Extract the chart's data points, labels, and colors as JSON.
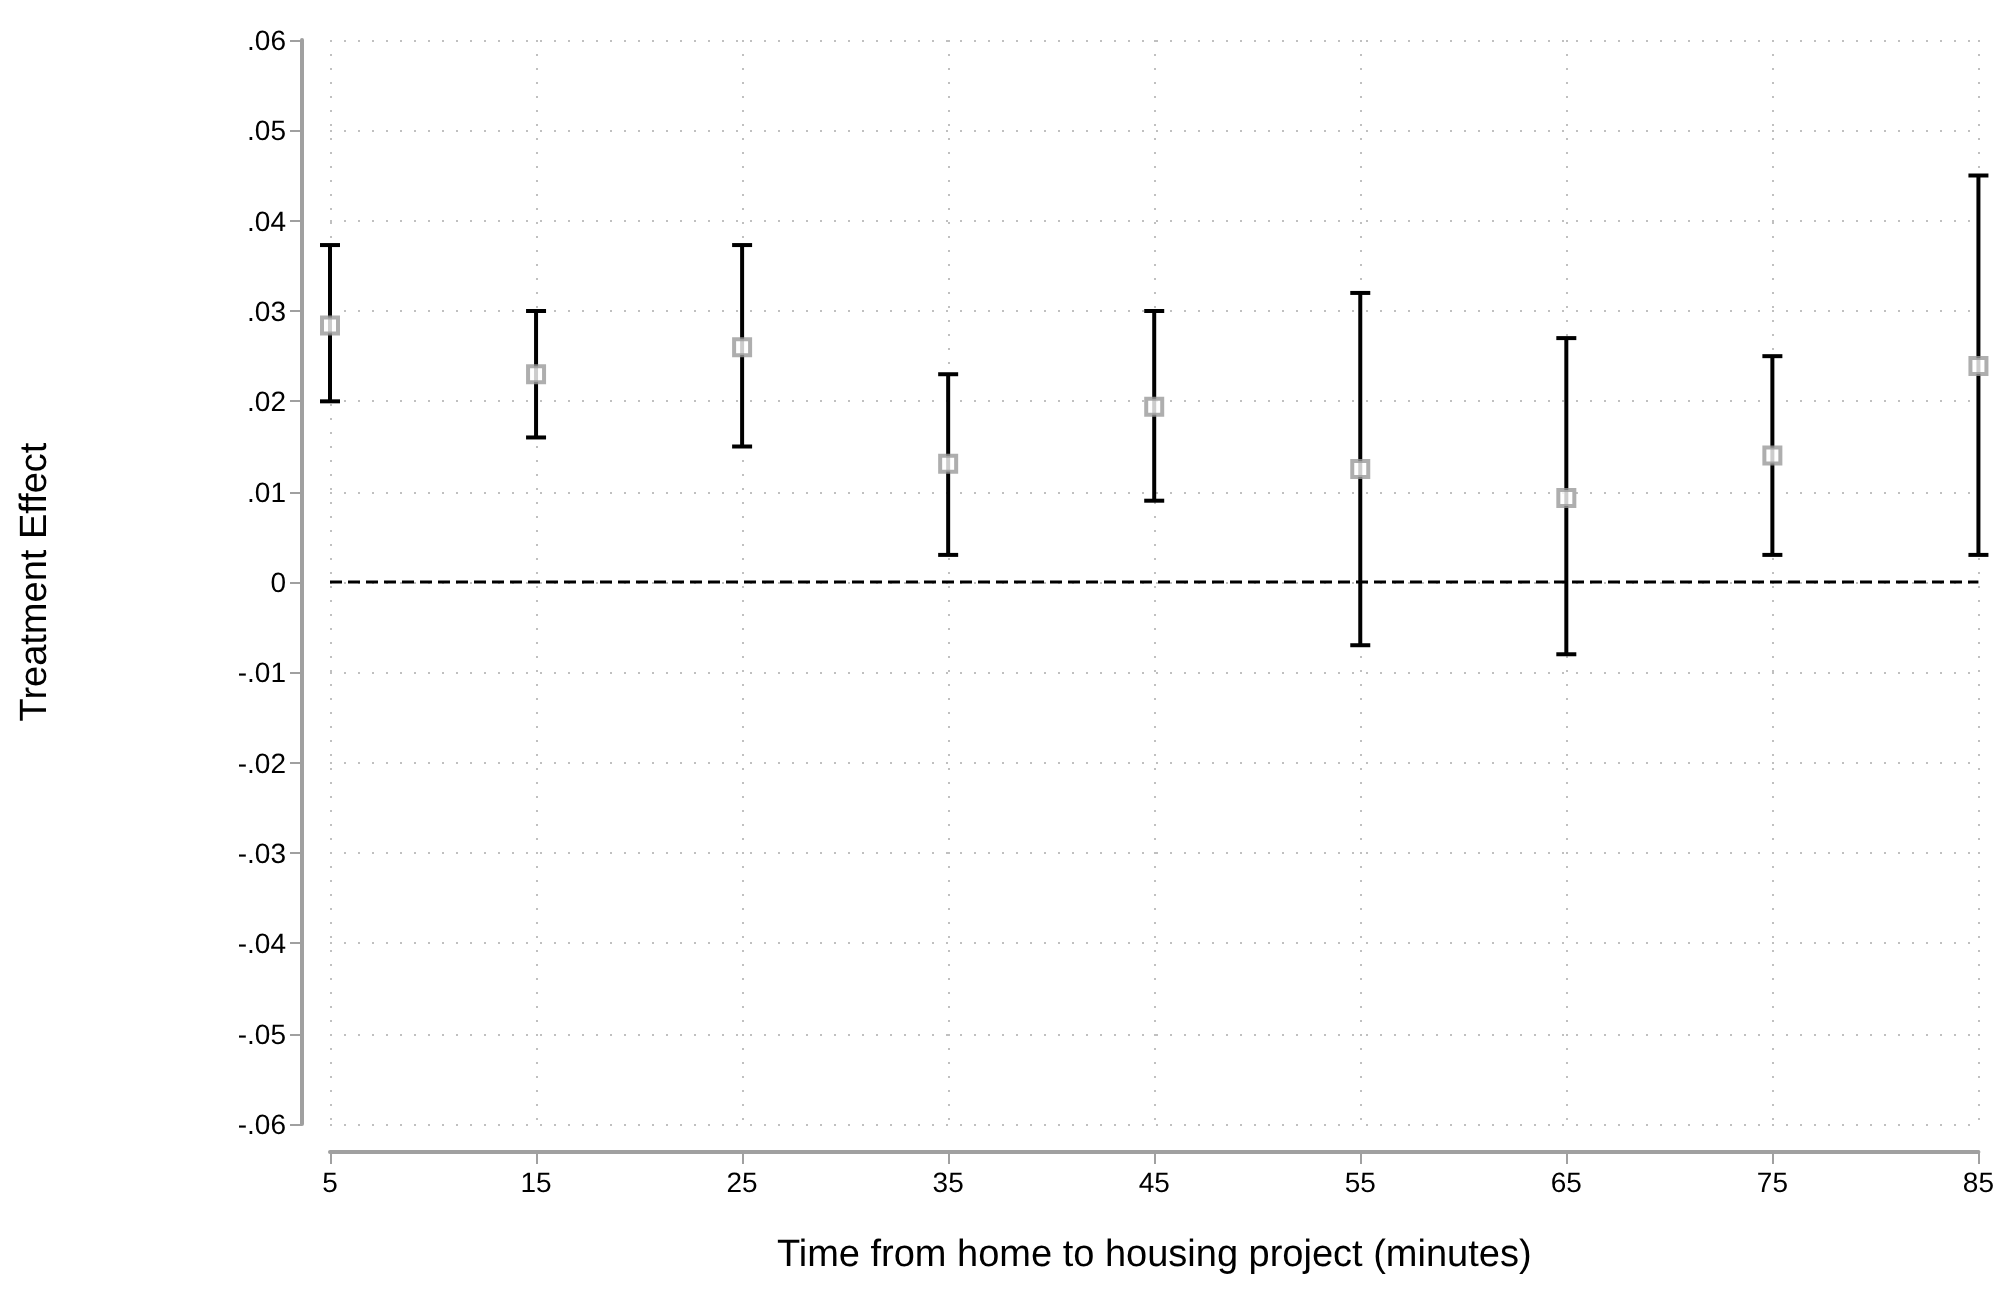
{
  "chart_data": {
    "type": "scatter",
    "xlabel": "Time from home to housing project (minutes)",
    "ylabel": "Treatment Effect",
    "x": [
      5,
      15,
      25,
      35,
      45,
      55,
      65,
      75,
      85
    ],
    "series": [
      {
        "color": "#9a9a9a",
        "values": [
          0.0284,
          0.023,
          0.026,
          0.0131,
          0.0194,
          0.0125,
          0.0093,
          0.014,
          0.0239
        ],
        "errors": [
          [
            0.02,
            0.0373
          ],
          [
            0.016,
            0.03
          ],
          [
            0.015,
            0.0373
          ],
          [
            0.003,
            0.023
          ],
          [
            0.009,
            0.03
          ],
          [
            -0.007,
            0.032
          ],
          [
            -0.008,
            0.027
          ],
          [
            0.003,
            0.025
          ],
          [
            0.003,
            0.045
          ]
        ]
      }
    ],
    "xlim": [
      5,
      85
    ],
    "xticks": [
      5,
      15,
      25,
      35,
      45,
      55,
      65,
      75,
      85
    ],
    "ylim": [
      -0.06,
      0.06
    ],
    "yticks": [
      {
        "value": -0.06,
        "label": "-.06"
      },
      {
        "value": -0.05,
        "label": "-.05"
      },
      {
        "value": -0.04,
        "label": "-.04"
      },
      {
        "value": -0.03,
        "label": "-.03"
      },
      {
        "value": -0.02,
        "label": "-.02"
      },
      {
        "value": -0.01,
        "label": "-.01"
      },
      {
        "value": 0,
        "label": "0"
      },
      {
        "value": 0.01,
        "label": ".01"
      },
      {
        "value": 0.02,
        "label": ".02"
      },
      {
        "value": 0.03,
        "label": ".03"
      },
      {
        "value": 0.04,
        "label": ".04"
      },
      {
        "value": 0.05,
        "label": ".05"
      },
      {
        "value": 0.06,
        "label": ".06"
      }
    ],
    "ref_lines": [
      {
        "axis": "y",
        "value": 0,
        "color": "#000000",
        "line_style": "dashed"
      }
    ],
    "grid": true,
    "marker": "square"
  }
}
